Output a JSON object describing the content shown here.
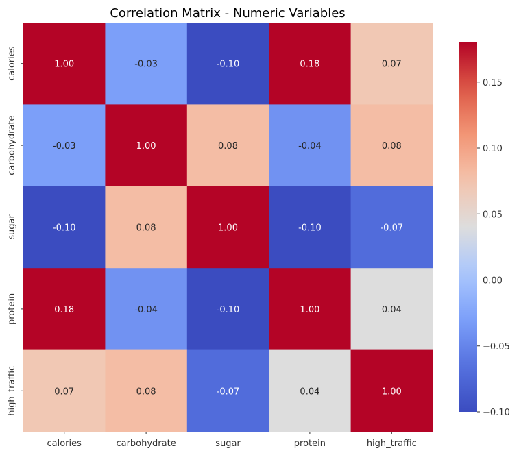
{
  "chart_data": {
    "type": "heatmap",
    "title": "Correlation Matrix - Numeric Variables",
    "row_labels": [
      "calories",
      "carbohydrate",
      "sugar",
      "protein",
      "high_traffic"
    ],
    "col_labels": [
      "calories",
      "carbohydrate",
      "sugar",
      "protein",
      "high_traffic"
    ],
    "values": [
      [
        1.0,
        -0.03,
        -0.1,
        0.18,
        0.07
      ],
      [
        -0.03,
        1.0,
        0.08,
        -0.04,
        0.08
      ],
      [
        -0.1,
        0.08,
        1.0,
        -0.1,
        -0.07
      ],
      [
        0.18,
        -0.04,
        -0.1,
        1.0,
        0.04
      ],
      [
        0.07,
        0.08,
        -0.07,
        0.04,
        1.0
      ]
    ],
    "annotations": [
      [
        "1.00",
        "-0.03",
        "-0.10",
        "0.18",
        "0.07"
      ],
      [
        "-0.03",
        "1.00",
        "0.08",
        "-0.04",
        "0.08"
      ],
      [
        "-0.10",
        "0.08",
        "1.00",
        "-0.10",
        "-0.07"
      ],
      [
        "0.18",
        "-0.04",
        "-0.10",
        "1.00",
        "0.04"
      ],
      [
        "0.07",
        "0.08",
        "-0.07",
        "0.04",
        "1.00"
      ]
    ],
    "colormap": "coolwarm",
    "colorbar": {
      "range": [
        -0.1,
        0.18
      ],
      "ticks": [
        -0.1,
        -0.05,
        0.0,
        0.05,
        0.1,
        0.15
      ],
      "tick_labels": [
        "−0.10",
        "−0.05",
        "0.00",
        "0.05",
        "0.10",
        "0.15"
      ],
      "placement": "right"
    },
    "grid": false
  }
}
